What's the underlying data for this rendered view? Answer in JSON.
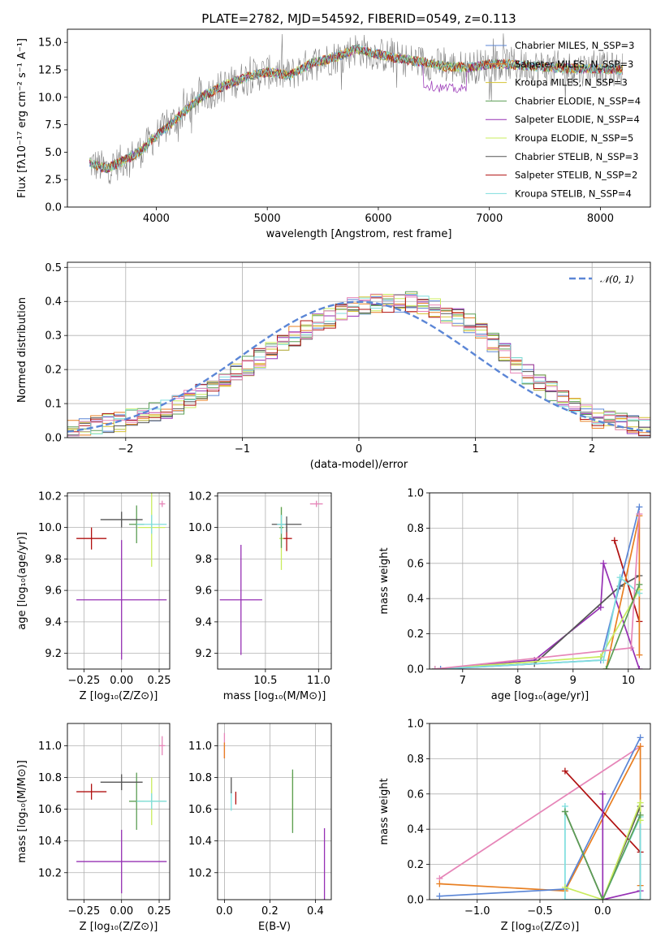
{
  "colors": {
    "palette": [
      "#5b86d6",
      "#e87f22",
      "#d5c233",
      "#5c9e55",
      "#9630b4",
      "#c9ec5e",
      "#555555",
      "#b01010",
      "#7fdede",
      "#e685b8"
    ],
    "frame": "#000000",
    "grid": "#b0b0b0"
  },
  "chart_data": [
    {
      "type": "line",
      "title": "PLATE=2782, MJD=54592, FIBERID=0549, z=0.113",
      "xlabel": "wavelength [Angstrom, rest frame]",
      "ylabel": "Flux [fλ10⁻¹⁷ erg cm⁻² s⁻¹ A⁻¹]",
      "xlim": [
        3200,
        8450
      ],
      "ylim": [
        0,
        16.2
      ],
      "xticks": [
        4000,
        5000,
        6000,
        7000,
        8000
      ],
      "xtick_labels": [
        "4000",
        "5000",
        "6000",
        "7000",
        "8000"
      ],
      "yticks": [
        0,
        2.5,
        5,
        7.5,
        10,
        12.5,
        15
      ],
      "ytick_labels": [
        "0.0",
        "2.5",
        "5.0",
        "7.5",
        "10.0",
        "12.5",
        "15.0"
      ],
      "grid": false,
      "legend": "upper right",
      "series": [
        {
          "name": "Chabrier MILES, N_SSP=3"
        },
        {
          "name": "Salpeter MILES, N_SSP=3"
        },
        {
          "name": "Kroupa MILES, N_SSP=3"
        },
        {
          "name": "Chabrier ELODIE, N_SSP=4"
        },
        {
          "name": "Salpeter ELODIE, N_SSP=4"
        },
        {
          "name": "Kroupa ELODIE, N_SSP=5"
        },
        {
          "name": "Chabrier STELIB, N_SSP=3"
        },
        {
          "name": "Salpeter STELIB, N_SSP=2"
        },
        {
          "name": "Kroupa STELIB, N_SSP=4"
        }
      ],
      "model_flux_points": {
        "x": [
          3400,
          3550,
          3700,
          3850,
          4000,
          4200,
          4400,
          4600,
          4800,
          5000,
          5200,
          5400,
          5600,
          5800,
          6000,
          6200,
          6400,
          6600,
          6800,
          7000,
          7200,
          7400,
          7600,
          7800,
          8000,
          8200
        ],
        "y": [
          4.0,
          3.5,
          4.2,
          5.0,
          6.5,
          8.2,
          10.0,
          11.0,
          11.8,
          12.3,
          12.0,
          13.1,
          13.6,
          14.4,
          13.9,
          13.5,
          13.2,
          12.8,
          12.7,
          13.0,
          13.0,
          12.8,
          12.7,
          12.6,
          12.6,
          12.5
        ]
      }
    },
    {
      "type": "line",
      "xlabel": "(data-model)/error",
      "ylabel": "Normed distribution",
      "xlim": [
        -2.5,
        2.5
      ],
      "ylim": [
        0,
        0.515
      ],
      "xticks": [
        -2,
        -1,
        0,
        1,
        2
      ],
      "xtick_labels": [
        "−2",
        "−1",
        "0",
        "1",
        "2"
      ],
      "yticks": [
        0,
        0.1,
        0.2,
        0.3,
        0.4,
        0.5
      ],
      "ytick_labels": [
        "0.0",
        "0.1",
        "0.2",
        "0.3",
        "0.4",
        "0.5"
      ],
      "grid": true,
      "legend": "upper right",
      "reference_curve": {
        "name": "𝒩(0, 1)",
        "mean": 0,
        "sigma": 1
      },
      "histogram_envelope": {
        "x": [
          -2.5,
          -2.0,
          -1.5,
          -1.0,
          -0.5,
          0.0,
          0.5,
          1.0,
          1.5,
          2.0,
          2.5
        ],
        "y": [
          0.02,
          0.05,
          0.1,
          0.2,
          0.31,
          0.39,
          0.4,
          0.33,
          0.17,
          0.06,
          0.03
        ]
      }
    },
    {
      "type": "scatter",
      "xlabel": "Z [log₁₀(Z/Z⊙)]",
      "ylabel": "age  [log₁₀(age/yr)]",
      "xlim": [
        -0.36,
        0.32
      ],
      "ylim": [
        9.1,
        10.22
      ],
      "xticks": [
        -0.25,
        0,
        0.25
      ],
      "xtick_labels": [
        "−0.25",
        "0.00",
        "0.25"
      ],
      "yticks": [
        9.2,
        9.4,
        9.6,
        9.8,
        10.0,
        10.2
      ],
      "ytick_labels": [
        "9.2",
        "9.4",
        "9.6",
        "9.8",
        "10.0",
        "10.2"
      ],
      "grid": true,
      "points": [
        {
          "x": 0.0,
          "y": 9.54,
          "xerr": 0.3,
          "yerr": 0.38,
          "color": 4
        },
        {
          "x": -0.2,
          "y": 9.93,
          "xerr": 0.1,
          "yerr": 0.07,
          "color": 7
        },
        {
          "x": 0.1,
          "y": 10.02,
          "xerr": 0.05,
          "yerr": 0.12,
          "color": 3
        },
        {
          "x": 0.0,
          "y": 10.05,
          "xerr": 0.14,
          "yerr": 0.05,
          "color": 6
        },
        {
          "x": 0.2,
          "y": 10.0,
          "xerr": 0.09,
          "yerr": 0.25,
          "color": 5
        },
        {
          "x": 0.2,
          "y": 10.02,
          "xerr": 0.1,
          "yerr": 0.06,
          "color": 8
        },
        {
          "x": 0.27,
          "y": 10.15,
          "xerr": 0.02,
          "yerr": 0.02,
          "color": 9
        }
      ]
    },
    {
      "type": "scatter",
      "xlabel": "mass [log₁₀(M/M⊙)]",
      "xlim": [
        10.05,
        11.12
      ],
      "ylim": [
        9.1,
        10.22
      ],
      "xticks": [
        10.5,
        11.0
      ],
      "xtick_labels": [
        "10.5",
        "11.0"
      ],
      "yticks": [
        9.2,
        9.4,
        9.6,
        9.8,
        10.0,
        10.2
      ],
      "ytick_labels": [
        "9.2",
        "9.4",
        "9.6",
        "9.8",
        "10.0",
        "10.2"
      ],
      "grid": true,
      "points": [
        {
          "x": 10.27,
          "y": 9.54,
          "xerr": 0.2,
          "yerr": 0.35,
          "color": 4
        },
        {
          "x": 10.7,
          "y": 9.93,
          "xerr": 0.05,
          "yerr": 0.08,
          "color": 7
        },
        {
          "x": 10.65,
          "y": 9.93,
          "xerr": 0.02,
          "yerr": 0.2,
          "color": 5
        },
        {
          "x": 10.65,
          "y": 10.0,
          "xerr": 0.02,
          "yerr": 0.13,
          "color": 3
        },
        {
          "x": 10.7,
          "y": 10.02,
          "xerr": 0.14,
          "yerr": 0.05,
          "color": 6
        },
        {
          "x": 10.65,
          "y": 10.02,
          "xerr": 0.04,
          "yerr": 0.06,
          "color": 8
        },
        {
          "x": 10.98,
          "y": 10.15,
          "xerr": 0.06,
          "yerr": 0.02,
          "color": 9
        }
      ]
    },
    {
      "type": "line",
      "xlabel": "age  [log₁₀(age/yr)]",
      "ylabel": "mass weight",
      "xlim": [
        6.4,
        10.4
      ],
      "ylim": [
        0,
        1
      ],
      "xticks": [
        7,
        8,
        9,
        10
      ],
      "xtick_labels": [
        "7",
        "8",
        "9",
        "10"
      ],
      "yticks": [
        0,
        0.2,
        0.4,
        0.6,
        0.8,
        1.0
      ],
      "ytick_labels": [
        "0.0",
        "0.2",
        "0.4",
        "0.6",
        "0.8",
        "1.0"
      ],
      "grid": true,
      "series": [
        {
          "color": 4,
          "x": [
            6.5,
            8.3,
            9.5,
            9.55,
            10.2
          ],
          "y": [
            0.0,
            0.05,
            0.35,
            0.6,
            0.0
          ]
        },
        {
          "color": 6,
          "x": [
            6.5,
            8.3,
            9.85,
            10.2
          ],
          "y": [
            0.0,
            0.03,
            0.47,
            0.53
          ]
        },
        {
          "color": 7,
          "x": [
            9.75,
            10.2
          ],
          "y": [
            0.73,
            0.27
          ]
        },
        {
          "color": 0,
          "x": [
            6.6,
            9.5,
            10.2
          ],
          "y": [
            0.0,
            0.05,
            0.92
          ]
        },
        {
          "color": 1,
          "x": [
            9.6,
            10.2,
            10.2
          ],
          "y": [
            0.0,
            0.87,
            0.08
          ]
        },
        {
          "color": 5,
          "x": [
            6.5,
            9.5,
            10.2
          ],
          "y": [
            0.0,
            0.07,
            0.45
          ]
        },
        {
          "color": 8,
          "x": [
            6.5,
            9.55,
            9.85,
            10.2
          ],
          "y": [
            0.0,
            0.05,
            0.52,
            0.43
          ]
        },
        {
          "color": 9,
          "x": [
            6.5,
            10.05,
            10.2
          ],
          "y": [
            0.0,
            0.12,
            0.88
          ]
        },
        {
          "color": 3,
          "x": [
            9.6,
            10.2
          ],
          "y": [
            0.0,
            0.48
          ]
        }
      ]
    },
    {
      "type": "scatter",
      "xlabel": "Z [log₁₀(Z/Z⊙)]",
      "ylabel": "mass [log₁₀(M/M⊙)]",
      "xlim": [
        -0.36,
        0.32
      ],
      "ylim": [
        10.03,
        11.14
      ],
      "xticks": [
        -0.25,
        0,
        0.25
      ],
      "xtick_labels": [
        "−0.25",
        "0.00",
        "0.25"
      ],
      "yticks": [
        10.2,
        10.4,
        10.6,
        10.8,
        11.0
      ],
      "ytick_labels": [
        "10.2",
        "10.4",
        "10.6",
        "10.8",
        "11.0"
      ],
      "grid": true,
      "points": [
        {
          "x": 0.0,
          "y": 10.27,
          "xerr": 0.3,
          "yerr": 0.2,
          "color": 4
        },
        {
          "x": -0.2,
          "y": 10.71,
          "xerr": 0.1,
          "yerr": 0.05,
          "color": 7
        },
        {
          "x": 0.1,
          "y": 10.65,
          "xerr": 0.05,
          "yerr": 0.18,
          "color": 3
        },
        {
          "x": 0.0,
          "y": 10.77,
          "xerr": 0.14,
          "yerr": 0.05,
          "color": 6
        },
        {
          "x": 0.2,
          "y": 10.65,
          "xerr": 0.09,
          "yerr": 0.15,
          "color": 5
        },
        {
          "x": 0.2,
          "y": 10.65,
          "xerr": 0.1,
          "yerr": 0.05,
          "color": 8
        },
        {
          "x": 0.27,
          "y": 11.0,
          "xerr": 0.02,
          "yerr": 0.06,
          "color": 9
        }
      ]
    },
    {
      "type": "scatter",
      "xlabel": "E(B-V)",
      "xlim": [
        -0.03,
        0.47
      ],
      "ylim": [
        10.03,
        11.14
      ],
      "xticks": [
        0.0,
        0.2,
        0.4
      ],
      "xtick_labels": [
        "0.0",
        "0.2",
        "0.4"
      ],
      "yticks": [
        10.2,
        10.4,
        10.6,
        10.8,
        11.0
      ],
      "ytick_labels": [
        "10.2",
        "10.4",
        "10.6",
        "10.8",
        "11.0"
      ],
      "grid": true,
      "points": [
        {
          "x": 0.0,
          "y": 11.0,
          "yerr": 0.08,
          "color": 9
        },
        {
          "x": 0.0,
          "y": 10.97,
          "yerr": 0.05,
          "color": 1
        },
        {
          "x": 0.03,
          "y": 10.65,
          "yerr": 0.06,
          "color": 8
        },
        {
          "x": 0.03,
          "y": 10.75,
          "yerr": 0.05,
          "color": 6
        },
        {
          "x": 0.05,
          "y": 10.67,
          "yerr": 0.04,
          "color": 7
        },
        {
          "x": 0.3,
          "y": 10.65,
          "yerr": 0.18,
          "color": 5
        },
        {
          "x": 0.3,
          "y": 10.65,
          "yerr": 0.2,
          "color": 3
        },
        {
          "x": 0.44,
          "y": 10.2,
          "yerr": 0.28,
          "color": 4
        }
      ]
    },
    {
      "type": "line",
      "xlabel": "Z [log₁₀(Z/Z⊙)]",
      "ylabel": "mass weight",
      "xlim": [
        -1.38,
        0.38
      ],
      "ylim": [
        0,
        1
      ],
      "xticks": [
        -1.0,
        -0.5,
        0.0
      ],
      "xtick_labels": [
        "−1.0",
        "−0.5",
        "0.0"
      ],
      "yticks": [
        0,
        0.2,
        0.4,
        0.6,
        0.8,
        1.0
      ],
      "ytick_labels": [
        "0.0",
        "0.2",
        "0.4",
        "0.6",
        "0.8",
        "1.0"
      ],
      "grid": true,
      "series": [
        {
          "color": 9,
          "x": [
            -1.3,
            0.3
          ],
          "y": [
            0.12,
            0.87
          ]
        },
        {
          "color": 1,
          "x": [
            -1.3,
            -0.3,
            0.3,
            0.3
          ],
          "y": [
            0.09,
            0.05,
            0.87,
            0.08
          ]
        },
        {
          "color": 0,
          "x": [
            -1.3,
            -0.3,
            0.3
          ],
          "y": [
            0.02,
            0.06,
            0.92
          ]
        },
        {
          "color": 7,
          "x": [
            -0.3,
            0.3
          ],
          "y": [
            0.73,
            0.27
          ]
        },
        {
          "color": 4,
          "x": [
            0.0,
            0.0,
            0.3
          ],
          "y": [
            0.6,
            0.0,
            0.05
          ]
        },
        {
          "color": 6,
          "x": [
            -0.3,
            0.0,
            0.3,
            0.3
          ],
          "y": [
            0.5,
            0.0,
            0.53,
            0.0
          ]
        },
        {
          "color": 8,
          "x": [
            -0.3,
            -0.3,
            0.0,
            0.3,
            0.3
          ],
          "y": [
            0.53,
            0.0,
            0.0,
            0.47,
            0.0
          ]
        },
        {
          "color": 5,
          "x": [
            -0.3,
            0.0,
            0.3,
            0.3
          ],
          "y": [
            0.07,
            0.0,
            0.55,
            0.45
          ]
        },
        {
          "color": 3,
          "x": [
            -0.3,
            0.0,
            0.3
          ],
          "y": [
            0.5,
            0.0,
            0.48
          ]
        }
      ]
    }
  ]
}
